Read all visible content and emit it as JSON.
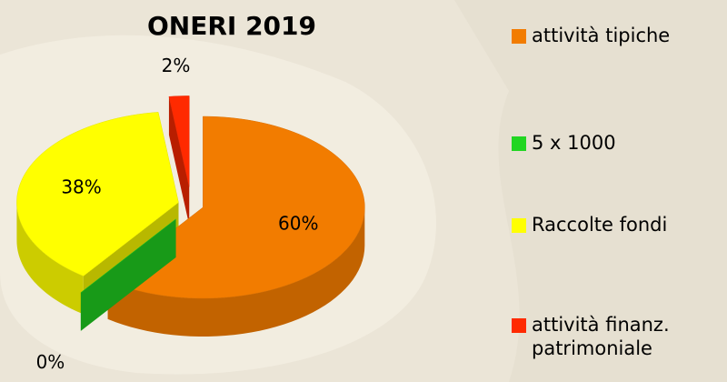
{
  "chart_data": {
    "type": "pie",
    "title": "ONERI 2019",
    "categories": [
      "attività tipiche",
      "5 x 1000",
      "Raccolte fondi",
      "attività finanz. patrimoniale"
    ],
    "values": [
      60,
      0,
      38,
      2
    ],
    "value_labels": [
      "60%",
      "0%",
      "38%",
      "2%"
    ],
    "colors": [
      "#f27c00",
      "#22d622",
      "#ffff00",
      "#ff2a00"
    ],
    "legend": "right"
  }
}
